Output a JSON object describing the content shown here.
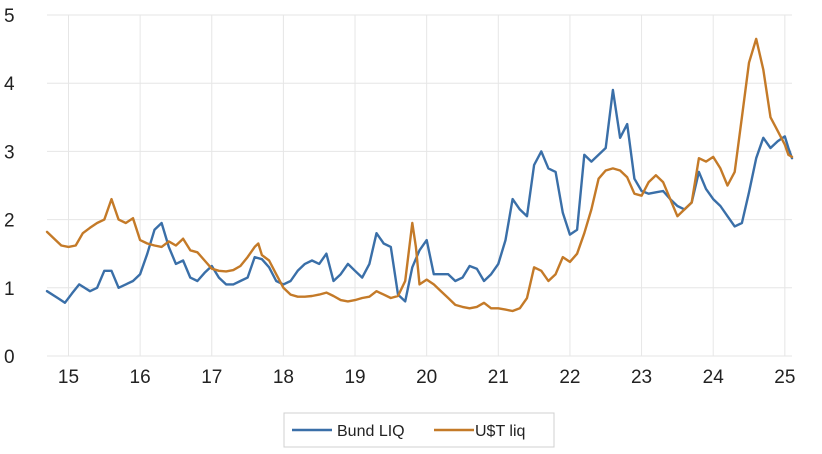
{
  "chart_data": {
    "type": "line",
    "title": "",
    "xlabel": "",
    "ylabel": "",
    "xlim": [
      14.7,
      25.1
    ],
    "ylim": [
      0,
      5
    ],
    "yticks": [
      0,
      1,
      2,
      3,
      4,
      5
    ],
    "xticks": [
      "15",
      "16",
      "17",
      "18",
      "19",
      "20",
      "21",
      "22",
      "23",
      "24",
      "25"
    ],
    "grid": "vertical-and-horizontal",
    "legend": "bottom-center",
    "series": [
      {
        "name": "Bund LIQ",
        "color": "#3a6fa8",
        "points": [
          [
            14.7,
            0.95
          ],
          [
            14.85,
            0.85
          ],
          [
            14.95,
            0.78
          ],
          [
            15.05,
            0.92
          ],
          [
            15.15,
            1.05
          ],
          [
            15.3,
            0.95
          ],
          [
            15.4,
            1.0
          ],
          [
            15.5,
            1.25
          ],
          [
            15.6,
            1.25
          ],
          [
            15.7,
            1.0
          ],
          [
            15.8,
            1.05
          ],
          [
            15.9,
            1.1
          ],
          [
            16.0,
            1.2
          ],
          [
            16.1,
            1.5
          ],
          [
            16.2,
            1.85
          ],
          [
            16.3,
            1.95
          ],
          [
            16.4,
            1.6
          ],
          [
            16.5,
            1.35
          ],
          [
            16.6,
            1.4
          ],
          [
            16.7,
            1.15
          ],
          [
            16.8,
            1.1
          ],
          [
            16.9,
            1.22
          ],
          [
            17.0,
            1.32
          ],
          [
            17.1,
            1.15
          ],
          [
            17.2,
            1.05
          ],
          [
            17.3,
            1.05
          ],
          [
            17.4,
            1.1
          ],
          [
            17.5,
            1.15
          ],
          [
            17.6,
            1.45
          ],
          [
            17.7,
            1.42
          ],
          [
            17.8,
            1.3
          ],
          [
            17.9,
            1.1
          ],
          [
            18.0,
            1.05
          ],
          [
            18.1,
            1.1
          ],
          [
            18.2,
            1.25
          ],
          [
            18.3,
            1.35
          ],
          [
            18.4,
            1.4
          ],
          [
            18.5,
            1.35
          ],
          [
            18.6,
            1.5
          ],
          [
            18.7,
            1.1
          ],
          [
            18.8,
            1.2
          ],
          [
            18.9,
            1.35
          ],
          [
            19.0,
            1.25
          ],
          [
            19.1,
            1.15
          ],
          [
            19.2,
            1.35
          ],
          [
            19.3,
            1.8
          ],
          [
            19.4,
            1.65
          ],
          [
            19.5,
            1.6
          ],
          [
            19.6,
            0.9
          ],
          [
            19.7,
            0.8
          ],
          [
            19.8,
            1.3
          ],
          [
            19.9,
            1.55
          ],
          [
            20.0,
            1.7
          ],
          [
            20.1,
            1.2
          ],
          [
            20.2,
            1.2
          ],
          [
            20.3,
            1.2
          ],
          [
            20.4,
            1.1
          ],
          [
            20.5,
            1.15
          ],
          [
            20.6,
            1.32
          ],
          [
            20.7,
            1.28
          ],
          [
            20.8,
            1.1
          ],
          [
            20.9,
            1.2
          ],
          [
            21.0,
            1.35
          ],
          [
            21.1,
            1.7
          ],
          [
            21.2,
            2.3
          ],
          [
            21.3,
            2.15
          ],
          [
            21.4,
            2.05
          ],
          [
            21.5,
            2.8
          ],
          [
            21.6,
            3.0
          ],
          [
            21.7,
            2.75
          ],
          [
            21.8,
            2.7
          ],
          [
            21.9,
            2.1
          ],
          [
            22.0,
            1.78
          ],
          [
            22.1,
            1.85
          ],
          [
            22.2,
            2.95
          ],
          [
            22.3,
            2.85
          ],
          [
            22.4,
            2.95
          ],
          [
            22.5,
            3.05
          ],
          [
            22.6,
            3.9
          ],
          [
            22.7,
            3.2
          ],
          [
            22.8,
            3.4
          ],
          [
            22.9,
            2.6
          ],
          [
            23.0,
            2.42
          ],
          [
            23.1,
            2.38
          ],
          [
            23.2,
            2.4
          ],
          [
            23.3,
            2.42
          ],
          [
            23.4,
            2.3
          ],
          [
            23.5,
            2.2
          ],
          [
            23.6,
            2.15
          ],
          [
            23.7,
            2.25
          ],
          [
            23.8,
            2.7
          ],
          [
            23.9,
            2.45
          ],
          [
            24.0,
            2.3
          ],
          [
            24.1,
            2.2
          ],
          [
            24.2,
            2.05
          ],
          [
            24.3,
            1.9
          ],
          [
            24.4,
            1.95
          ],
          [
            24.5,
            2.4
          ],
          [
            24.6,
            2.9
          ],
          [
            24.7,
            3.2
          ],
          [
            24.8,
            3.05
          ],
          [
            24.9,
            3.15
          ],
          [
            25.0,
            3.22
          ],
          [
            25.05,
            3.05
          ],
          [
            25.1,
            2.9
          ]
        ]
      },
      {
        "name": "U$T liq",
        "color": "#c47a28",
        "points": [
          [
            14.7,
            1.82
          ],
          [
            14.8,
            1.72
          ],
          [
            14.9,
            1.62
          ],
          [
            15.0,
            1.6
          ],
          [
            15.1,
            1.62
          ],
          [
            15.2,
            1.8
          ],
          [
            15.3,
            1.88
          ],
          [
            15.4,
            1.95
          ],
          [
            15.5,
            2.0
          ],
          [
            15.6,
            2.3
          ],
          [
            15.7,
            2.0
          ],
          [
            15.8,
            1.95
          ],
          [
            15.9,
            2.02
          ],
          [
            16.0,
            1.7
          ],
          [
            16.1,
            1.65
          ],
          [
            16.2,
            1.62
          ],
          [
            16.3,
            1.6
          ],
          [
            16.4,
            1.68
          ],
          [
            16.5,
            1.62
          ],
          [
            16.6,
            1.72
          ],
          [
            16.7,
            1.55
          ],
          [
            16.8,
            1.52
          ],
          [
            16.9,
            1.4
          ],
          [
            17.0,
            1.28
          ],
          [
            17.1,
            1.25
          ],
          [
            17.2,
            1.24
          ],
          [
            17.3,
            1.26
          ],
          [
            17.4,
            1.32
          ],
          [
            17.5,
            1.45
          ],
          [
            17.6,
            1.6
          ],
          [
            17.65,
            1.65
          ],
          [
            17.7,
            1.48
          ],
          [
            17.8,
            1.4
          ],
          [
            17.9,
            1.2
          ],
          [
            18.0,
            1.0
          ],
          [
            18.1,
            0.9
          ],
          [
            18.2,
            0.87
          ],
          [
            18.3,
            0.87
          ],
          [
            18.4,
            0.88
          ],
          [
            18.5,
            0.9
          ],
          [
            18.6,
            0.93
          ],
          [
            18.7,
            0.88
          ],
          [
            18.8,
            0.82
          ],
          [
            18.9,
            0.8
          ],
          [
            19.0,
            0.82
          ],
          [
            19.1,
            0.85
          ],
          [
            19.2,
            0.87
          ],
          [
            19.3,
            0.95
          ],
          [
            19.4,
            0.9
          ],
          [
            19.5,
            0.85
          ],
          [
            19.6,
            0.88
          ],
          [
            19.7,
            1.1
          ],
          [
            19.8,
            1.95
          ],
          [
            19.85,
            1.6
          ],
          [
            19.9,
            1.05
          ],
          [
            20.0,
            1.12
          ],
          [
            20.1,
            1.05
          ],
          [
            20.2,
            0.95
          ],
          [
            20.3,
            0.85
          ],
          [
            20.4,
            0.75
          ],
          [
            20.5,
            0.72
          ],
          [
            20.6,
            0.7
          ],
          [
            20.7,
            0.72
          ],
          [
            20.8,
            0.78
          ],
          [
            20.9,
            0.7
          ],
          [
            21.0,
            0.7
          ],
          [
            21.1,
            0.68
          ],
          [
            21.2,
            0.66
          ],
          [
            21.3,
            0.7
          ],
          [
            21.4,
            0.85
          ],
          [
            21.5,
            1.3
          ],
          [
            21.6,
            1.25
          ],
          [
            21.7,
            1.1
          ],
          [
            21.8,
            1.2
          ],
          [
            21.9,
            1.45
          ],
          [
            22.0,
            1.38
          ],
          [
            22.1,
            1.5
          ],
          [
            22.2,
            1.8
          ],
          [
            22.3,
            2.15
          ],
          [
            22.4,
            2.6
          ],
          [
            22.5,
            2.72
          ],
          [
            22.6,
            2.75
          ],
          [
            22.7,
            2.72
          ],
          [
            22.8,
            2.62
          ],
          [
            22.9,
            2.38
          ],
          [
            23.0,
            2.35
          ],
          [
            23.1,
            2.55
          ],
          [
            23.2,
            2.65
          ],
          [
            23.3,
            2.55
          ],
          [
            23.4,
            2.3
          ],
          [
            23.5,
            2.05
          ],
          [
            23.6,
            2.15
          ],
          [
            23.7,
            2.25
          ],
          [
            23.8,
            2.9
          ],
          [
            23.9,
            2.85
          ],
          [
            24.0,
            2.92
          ],
          [
            24.1,
            2.75
          ],
          [
            24.2,
            2.5
          ],
          [
            24.3,
            2.7
          ],
          [
            24.4,
            3.5
          ],
          [
            24.5,
            4.3
          ],
          [
            24.6,
            4.65
          ],
          [
            24.7,
            4.2
          ],
          [
            24.8,
            3.5
          ],
          [
            24.9,
            3.3
          ],
          [
            25.0,
            3.1
          ],
          [
            25.05,
            2.95
          ],
          [
            25.1,
            2.92
          ]
        ]
      }
    ]
  }
}
